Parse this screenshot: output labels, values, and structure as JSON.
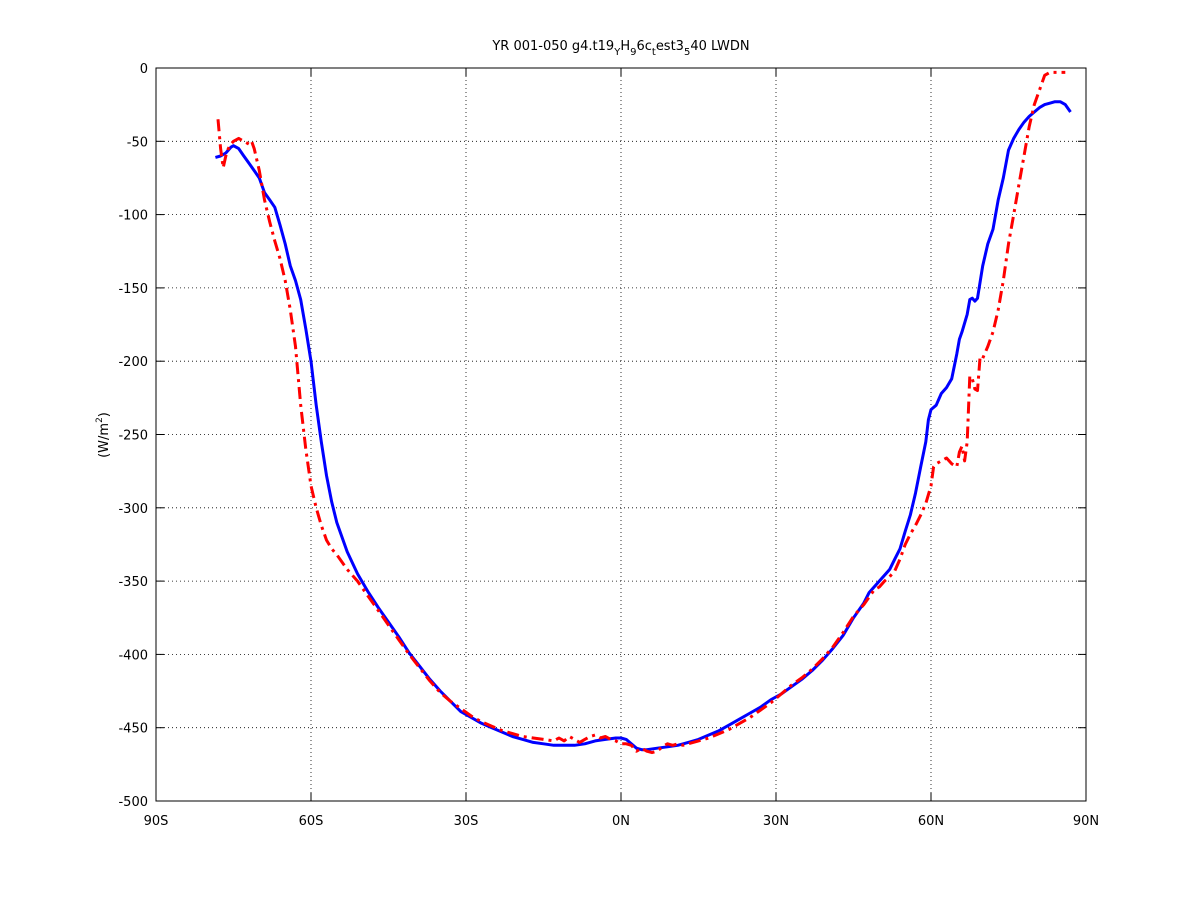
{
  "chart_data": {
    "type": "line",
    "title_parts": {
      "a": "YR 001-050 g4.t19",
      "b": "Y",
      "c": "H",
      "d": "9",
      "e": "6c",
      "f": "t",
      "g": "est3",
      "h": "5",
      "i": "40 LWDN"
    },
    "xlabel": "",
    "ylabel": "(W/m",
    "ylabel_sup": "2",
    "ylabel_end": ")",
    "xlim": [
      -90,
      90
    ],
    "ylim": [
      -500,
      0
    ],
    "grid": true,
    "x_ticks": [
      {
        "value": -90,
        "label": "90S"
      },
      {
        "value": -60,
        "label": "60S"
      },
      {
        "value": -30,
        "label": "30S"
      },
      {
        "value": 0,
        "label": "0N"
      },
      {
        "value": 30,
        "label": "30N"
      },
      {
        "value": 60,
        "label": "60N"
      },
      {
        "value": 90,
        "label": "90N"
      }
    ],
    "y_ticks": [
      {
        "value": 0,
        "label": "0"
      },
      {
        "value": -50,
        "label": "-50"
      },
      {
        "value": -100,
        "label": "-100"
      },
      {
        "value": -150,
        "label": "-150"
      },
      {
        "value": -200,
        "label": "-200"
      },
      {
        "value": -250,
        "label": "-250"
      },
      {
        "value": -300,
        "label": "-300"
      },
      {
        "value": -350,
        "label": "-350"
      },
      {
        "value": -400,
        "label": "-400"
      },
      {
        "value": -450,
        "label": "-450"
      },
      {
        "value": -500,
        "label": "-500"
      }
    ],
    "series": [
      {
        "color": "#0000ff",
        "style": "solid",
        "x": [
          -78.5,
          -77.5,
          -76.5,
          -75.5,
          -75,
          -74,
          -73,
          -72,
          -71,
          -70,
          -69,
          -68,
          -67,
          -66,
          -65,
          -64,
          -63,
          -62,
          -61,
          -60,
          -59,
          -58,
          -57,
          -56,
          -55,
          -53,
          -51,
          -49,
          -47,
          -45,
          -43,
          -41,
          -39,
          -37,
          -35,
          -33,
          -31,
          -29,
          -27,
          -25,
          -23,
          -21,
          -19,
          -17,
          -15,
          -13,
          -11,
          -9,
          -7,
          -5,
          -3,
          -1,
          0,
          1,
          2,
          3,
          4,
          5,
          7,
          9,
          11,
          13,
          15,
          17,
          19,
          21,
          23,
          25,
          27,
          29,
          31,
          33,
          35,
          37,
          39,
          41,
          43,
          45,
          47,
          48,
          50,
          52,
          53,
          54,
          55,
          56,
          57,
          58,
          59,
          59.5,
          60,
          61,
          62,
          63,
          64,
          65,
          65.5,
          66,
          67,
          67.5,
          68,
          68.5,
          69,
          70,
          71,
          72,
          73,
          74,
          75,
          76,
          77,
          78,
          79,
          80,
          81,
          82,
          83,
          84,
          85,
          86,
          87
        ],
        "y": [
          -61,
          -60,
          -58,
          -54,
          -53,
          -55,
          -60,
          -65,
          -70,
          -75,
          -85,
          -90,
          -95,
          -107,
          -120,
          -135,
          -145,
          -158,
          -178,
          -200,
          -230,
          -255,
          -278,
          -296,
          -310,
          -330,
          -345,
          -357,
          -368,
          -378,
          -388,
          -399,
          -408,
          -417,
          -425,
          -432,
          -439,
          -443,
          -447,
          -450,
          -453,
          -456,
          -458,
          -460,
          -461,
          -462,
          -462,
          -462,
          -461,
          -459,
          -458,
          -457,
          -457,
          -458,
          -461,
          -464,
          -465,
          -465,
          -464,
          -463,
          -462,
          -460,
          -458,
          -455,
          -452,
          -448,
          -444,
          -440,
          -436,
          -431,
          -427,
          -422,
          -417,
          -411,
          -404,
          -396,
          -387,
          -375,
          -365,
          -358,
          -350,
          -342,
          -335,
          -328,
          -316,
          -305,
          -290,
          -272,
          -255,
          -240,
          -233,
          -230,
          -222,
          -218,
          -212,
          -195,
          -185,
          -180,
          -168,
          -158,
          -157,
          -159,
          -157,
          -135,
          -120,
          -110,
          -90,
          -75,
          -56,
          -48,
          -42,
          -37,
          -33,
          -30,
          -27,
          -25,
          -24,
          -23,
          -23,
          -25,
          -30
        ]
      },
      {
        "color": "#ff0000",
        "style": "dashdot",
        "x": [
          -78,
          -77.5,
          -77,
          -76.5,
          -76,
          -75.5,
          -75,
          -74,
          -73,
          -72,
          -71.5,
          -71,
          -70,
          -69,
          -68,
          -67,
          -66,
          -65,
          -64,
          -63,
          -62,
          -61,
          -60,
          -59,
          -58,
          -57,
          -56,
          -55,
          -53,
          -51,
          -49,
          -47,
          -45,
          -43,
          -41,
          -39,
          -37,
          -35,
          -33,
          -31,
          -29,
          -27,
          -25,
          -23,
          -21,
          -19,
          -17,
          -15,
          -13,
          -12,
          -11,
          -10,
          -9,
          -8,
          -7,
          -6,
          -5,
          -4,
          -3,
          -2,
          -1,
          0,
          1,
          2,
          3,
          4,
          5,
          6,
          7,
          8,
          9,
          10,
          11,
          12,
          13,
          15,
          17,
          19,
          21,
          23,
          25,
          27,
          29,
          31,
          33,
          35,
          37,
          39,
          41,
          43,
          45,
          47,
          48,
          49,
          50,
          51,
          52,
          53,
          54,
          55,
          56,
          57,
          58,
          59,
          60,
          60.5,
          61,
          62,
          63,
          64,
          65,
          65.5,
          66,
          66.5,
          67,
          67.5,
          68,
          68.5,
          69,
          69.5,
          70,
          71,
          72,
          73,
          74,
          75,
          76,
          77,
          78,
          79,
          80,
          81,
          82,
          83,
          84,
          85,
          86
        ],
        "y": [
          -35,
          -55,
          -68,
          -60,
          -55,
          -52,
          -50,
          -48,
          -50,
          -52,
          -50,
          -55,
          -70,
          -90,
          -105,
          -118,
          -130,
          -145,
          -165,
          -190,
          -230,
          -260,
          -285,
          -300,
          -312,
          -322,
          -328,
          -332,
          -342,
          -350,
          -360,
          -370,
          -380,
          -390,
          -400,
          -409,
          -418,
          -426,
          -432,
          -437,
          -442,
          -446,
          -449,
          -452,
          -454,
          -456,
          -457,
          -458,
          -459,
          -457,
          -459,
          -456,
          -458,
          -460,
          -458,
          -456,
          -455,
          -457,
          -456,
          -458,
          -459,
          -461,
          -461,
          -462,
          -466,
          -464,
          -466,
          -467,
          -466,
          -463,
          -461,
          -462,
          -461,
          -462,
          -461,
          -459,
          -457,
          -454,
          -451,
          -447,
          -443,
          -438,
          -433,
          -427,
          -421,
          -416,
          -410,
          -403,
          -395,
          -385,
          -374,
          -366,
          -361,
          -356,
          -354,
          -350,
          -347,
          -343,
          -335,
          -325,
          -318,
          -312,
          -305,
          -297,
          -285,
          -272,
          -270,
          -268,
          -266,
          -270,
          -272,
          -262,
          -258,
          -268,
          -255,
          -210,
          -212,
          -219,
          -220,
          -197,
          -198,
          -190,
          -180,
          -165,
          -145,
          -120,
          -100,
          -80,
          -60,
          -40,
          -25,
          -15,
          -5,
          -3,
          -3,
          -3,
          -3
        ]
      }
    ]
  }
}
